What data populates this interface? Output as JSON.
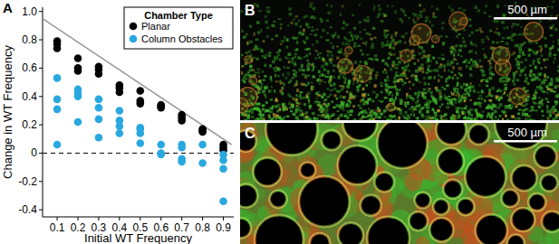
{
  "chart_data": {
    "type": "scatter",
    "title": "A",
    "x_label": "Initial WT Frequency",
    "y_label": "Change in WT Frequency",
    "legend_title": "Chamber Type",
    "legend": "upper right",
    "xlim": [
      0.03,
      0.95
    ],
    "ylim": [
      -0.45,
      1.03
    ],
    "xticks": [
      0.1,
      0.2,
      0.3,
      0.4,
      0.5,
      0.6,
      0.7,
      0.8,
      0.9
    ],
    "yticks": [
      -0.4,
      -0.2,
      0,
      0.2,
      0.4,
      0.6,
      0.8,
      {
        "value": 1.0,
        "label": "1.0"
      }
    ],
    "series": [
      {
        "name": "Planar",
        "type": "scatter",
        "marker": "circle",
        "color": "#000000",
        "x": [
          0.1,
          0.1,
          0.1,
          0.2,
          0.2,
          0.2,
          0.3,
          0.3,
          0.3,
          0.4,
          0.4,
          0.4,
          0.5,
          0.5,
          0.5,
          0.6,
          0.6,
          0.6,
          0.7,
          0.7,
          0.7,
          0.8,
          0.8,
          0.8,
          0.9,
          0.9,
          0.9
        ],
        "values": [
          0.79,
          0.77,
          0.74,
          0.67,
          0.6,
          0.58,
          0.61,
          0.59,
          0.56,
          0.48,
          0.46,
          0.43,
          0.44,
          0.37,
          0.35,
          0.34,
          0.33,
          0.32,
          0.27,
          0.25,
          0.23,
          0.17,
          0.16,
          0.15,
          0.06,
          0.04,
          0.02
        ]
      },
      {
        "name": "Column Obstacles",
        "type": "scatter",
        "marker": "circle",
        "color": "#29a8e0",
        "x": [
          0.1,
          0.1,
          0.1,
          0.1,
          0.2,
          0.2,
          0.2,
          0.2,
          0.3,
          0.3,
          0.3,
          0.3,
          0.4,
          0.4,
          0.4,
          0.4,
          0.5,
          0.5,
          0.5,
          0.5,
          0.6,
          0.6,
          0.6,
          0.7,
          0.7,
          0.7,
          0.7,
          0.8,
          0.8,
          0.9,
          0.9,
          0.9,
          0.9
        ],
        "values": [
          0.53,
          0.38,
          0.31,
          0.06,
          0.45,
          0.42,
          0.4,
          0.22,
          0.38,
          0.32,
          0.24,
          0.11,
          0.3,
          0.23,
          0.19,
          0.14,
          0.18,
          0.17,
          0.14,
          0.07,
          0.06,
          0.0,
          -0.01,
          0.06,
          0.04,
          -0.04,
          -0.06,
          0.06,
          -0.07,
          -0.01,
          -0.05,
          -0.11,
          -0.34
        ]
      },
      {
        "type": "line",
        "line_style": "solid",
        "color": "#999999",
        "x": [
          0.03,
          0.94
        ],
        "values": [
          0.95,
          0.06
        ]
      },
      {
        "type": "line",
        "line_style": "dashed",
        "color": "#000000",
        "x": [
          0.03,
          0.95
        ],
        "values": [
          0,
          0
        ]
      }
    ]
  },
  "panels": [
    {
      "label": "B",
      "scale_bar": "500 µm"
    },
    {
      "label": "C",
      "scale_bar": "500 µm"
    }
  ]
}
